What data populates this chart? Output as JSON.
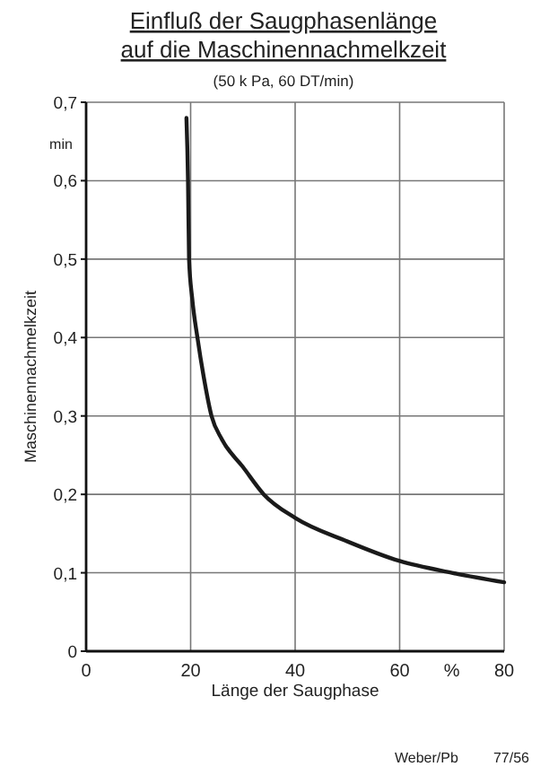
{
  "chart_data": {
    "type": "line",
    "title": "Einfluß der Saugphasenlänge auf die Maschinennachmelkzeit",
    "subtitle": "(50 k Pa, 60 DT/min)",
    "xlabel": "Länge der Saugphase",
    "ylabel": "Maschinennachmelkzeit",
    "x": [
      19.2,
      19.5,
      19.7,
      20.3,
      21.3,
      22.5,
      24,
      26,
      30,
      34,
      40,
      50,
      60,
      70,
      80
    ],
    "series": [
      {
        "color": "#1a1a1a",
        "values": [
          0.68,
          0.6,
          0.5,
          0.45,
          0.4,
          0.35,
          0.3,
          0.27,
          0.235,
          0.2,
          0.17,
          0.14,
          0.115,
          0.1,
          0.088
        ]
      }
    ],
    "xlim": [
      0,
      80
    ],
    "ylim": [
      0,
      0.7
    ],
    "xticks": [
      0,
      20,
      40,
      60,
      80
    ],
    "yticks": [
      0,
      {
        "value": 0.1,
        "label": "0,1"
      },
      {
        "value": 0.2,
        "label": "0,2"
      },
      {
        "value": 0.3,
        "label": "0,3"
      },
      {
        "value": 0.4,
        "label": "0,4"
      },
      {
        "value": 0.5,
        "label": "0,5"
      },
      {
        "value": 0.6,
        "label": "0,6"
      },
      {
        "value": 0.7,
        "label": "0,7"
      }
    ],
    "grid": true,
    "marker": "none",
    "line_style": "solid",
    "annotations": [
      "min",
      "%",
      "Weber/Pb",
      "77/56"
    ]
  }
}
